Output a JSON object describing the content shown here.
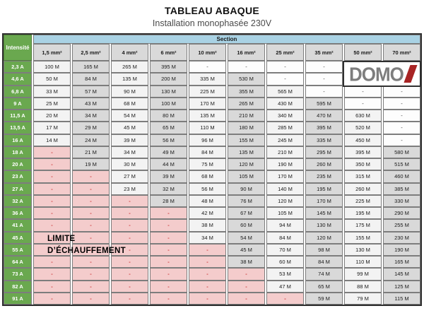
{
  "page": {
    "title": "TABLEAU ABAQUE",
    "subtitle": "Installation monophasée 230V"
  },
  "table": {
    "corner_label": "Intensité",
    "section_label": "Section",
    "columns": [
      "1,5 mm²",
      "2,5 mm²",
      "4 mm²",
      "6 mm²",
      "10 mm²",
      "16 mm²",
      "25 mm²",
      "35 mm²",
      "50 mm²",
      "70 mm²"
    ],
    "rows": [
      {
        "label": "2,3 A",
        "cells": [
          "100 M",
          "165 M",
          "265 M",
          "395 M",
          "-",
          "-",
          "-",
          "-",
          "-",
          "-"
        ]
      },
      {
        "label": "4,6 A",
        "cells": [
          "50 M",
          "84 M",
          "135 M",
          "200 M",
          "335 M",
          "530 M",
          "-",
          "-",
          "-",
          "-"
        ]
      },
      {
        "label": "6,8 A",
        "cells": [
          "33 M",
          "57 M",
          "90 M",
          "130 M",
          "225 M",
          "355 M",
          "565 M",
          "-",
          "-",
          "-"
        ]
      },
      {
        "label": "9 A",
        "cells": [
          "25 M",
          "43 M",
          "68 M",
          "100 M",
          "170 M",
          "265 M",
          "430 M",
          "595 M",
          "-",
          "-"
        ]
      },
      {
        "label": "11,5 A",
        "cells": [
          "20 M",
          "34 M",
          "54 M",
          "80 M",
          "135 M",
          "210 M",
          "340 M",
          "470 M",
          "630 M",
          "-"
        ]
      },
      {
        "label": "13,5 A",
        "cells": [
          "17 M",
          "29 M",
          "45 M",
          "65 M",
          "110 M",
          "180 M",
          "285 M",
          "395 M",
          "520 M",
          "-"
        ]
      },
      {
        "label": "16 A",
        "cells": [
          "14 M",
          "24 M",
          "39 M",
          "56 M",
          "96 M",
          "155 M",
          "245 M",
          "335 M",
          "450 M",
          "-"
        ]
      },
      {
        "label": "18 A",
        "cells": [
          "-",
          "21 M",
          "34 M",
          "49 M",
          "84 M",
          "135 M",
          "210 M",
          "295 M",
          "395 M",
          "580 M"
        ]
      },
      {
        "label": "20 A",
        "cells": [
          "-",
          "19 M",
          "30 M",
          "44 M",
          "75 M",
          "120 M",
          "190 M",
          "260 M",
          "350 M",
          "515 M"
        ]
      },
      {
        "label": "23 A",
        "cells": [
          "-",
          "-",
          "27 M",
          "39 M",
          "68 M",
          "105 M",
          "170 M",
          "235 M",
          "315 M",
          "460 M"
        ]
      },
      {
        "label": "27 A",
        "cells": [
          "-",
          "-",
          "23 M",
          "32 M",
          "56 M",
          "90 M",
          "140 M",
          "195 M",
          "260 M",
          "385 M"
        ]
      },
      {
        "label": "32 A",
        "cells": [
          "-",
          "-",
          "-",
          "28 M",
          "48 M",
          "76 M",
          "120 M",
          "170 M",
          "225 M",
          "330 M"
        ]
      },
      {
        "label": "36 A",
        "cells": [
          "-",
          "-",
          "-",
          "-",
          "42 M",
          "67 M",
          "105 M",
          "145 M",
          "195 M",
          "290 M"
        ]
      },
      {
        "label": "41 A",
        "cells": [
          "-",
          "-",
          "-",
          "-",
          "38 M",
          "60 M",
          "94 M",
          "130 M",
          "175 M",
          "255 M"
        ]
      },
      {
        "label": "45 A",
        "cells": [
          "-",
          "-",
          "-",
          "-",
          "34 M",
          "54 M",
          "84 M",
          "120 M",
          "155 M",
          "230 M"
        ]
      },
      {
        "label": "55 A",
        "cells": [
          "-",
          "-",
          "-",
          "-",
          "-",
          "45 M",
          "70 M",
          "98 M",
          "130 M",
          "190 M"
        ]
      },
      {
        "label": "64 A",
        "cells": [
          "-",
          "-",
          "-",
          "-",
          "-",
          "38 M",
          "60 M",
          "84 M",
          "110 M",
          "165 M"
        ]
      },
      {
        "label": "73 A",
        "cells": [
          "-",
          "-",
          "-",
          "-",
          "-",
          "-",
          "53 M",
          "74 M",
          "99 M",
          "145 M"
        ]
      },
      {
        "label": "82 A",
        "cells": [
          "-",
          "-",
          "-",
          "-",
          "-",
          "-",
          "47 M",
          "65 M",
          "88 M",
          "125 M"
        ]
      },
      {
        "label": "91 A",
        "cells": [
          "-",
          "-",
          "-",
          "-",
          "-",
          "-",
          "-",
          "59 M",
          "79 M",
          "115 M"
        ]
      }
    ]
  },
  "overlays": {
    "limit_line1": "LIMITE",
    "limit_line2": "D’ÉCHAUFFEMENT",
    "logo_text": "DOMO"
  },
  "colors": {
    "green": "#6aa84f",
    "blue_band": "#a9d2e4",
    "header_gray": "#d9d9d9",
    "cell_light": "#f3f3f3",
    "cell_dark": "#d9d9d9",
    "pink": "#f4cccc",
    "pink_dash_red": "#cc3333",
    "logo_gray": "#7e7e7e",
    "logo_red": "#a82424"
  }
}
